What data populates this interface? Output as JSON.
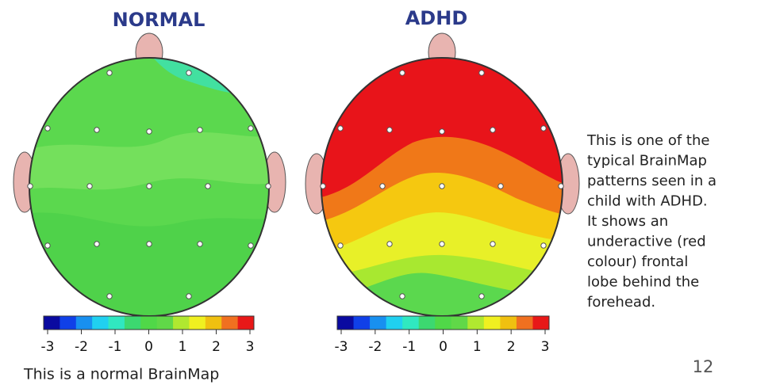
{
  "maps": [
    {
      "title": "NORMAL",
      "scale": [
        -3,
        -2,
        -1,
        0,
        1,
        2,
        3
      ]
    },
    {
      "title": "ADHD",
      "scale": [
        -3,
        -2,
        -1,
        0,
        1,
        2,
        3
      ]
    }
  ],
  "caption": "This is a normal BrainMap",
  "description": [
    "This is one of the",
    "typical BrainMap",
    "patterns seen in a",
    "child with ADHD.",
    "It shows an",
    "underactive (red",
    "colour) frontal",
    "lobe behind the",
    "forehead."
  ],
  "page_number": "12"
}
